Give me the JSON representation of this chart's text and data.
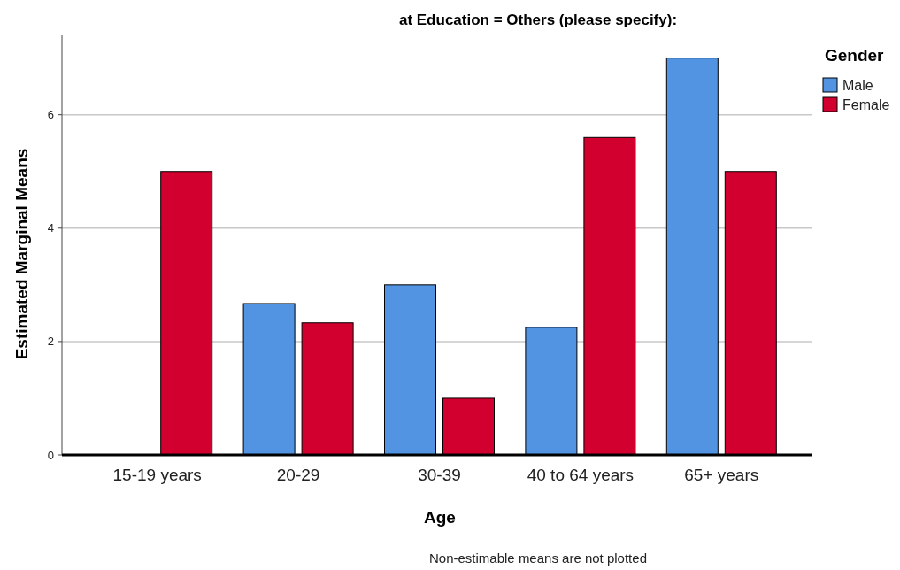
{
  "chart_data": {
    "type": "bar",
    "title": "at Education = Others (please specify):",
    "xlabel": "Age",
    "ylabel": "Estimated Marginal Means",
    "legend_title": "Gender",
    "categories": [
      "15-19 years",
      "20-29",
      "30-39",
      "40 to 64 years",
      "65+ years"
    ],
    "series": [
      {
        "name": "Male",
        "color": "#5294e2",
        "values": [
          null,
          2.67,
          3.0,
          2.25,
          7.0
        ]
      },
      {
        "name": "Female",
        "color": "#d2002e",
        "values": [
          5.0,
          2.33,
          1.0,
          5.6,
          5.0
        ]
      }
    ],
    "ylim": [
      0,
      7.4
    ],
    "yticks": [
      0,
      2,
      4,
      6
    ],
    "grid": "y",
    "legend": "top right",
    "annotations": [
      "Non-estimable means are not plotted"
    ]
  }
}
